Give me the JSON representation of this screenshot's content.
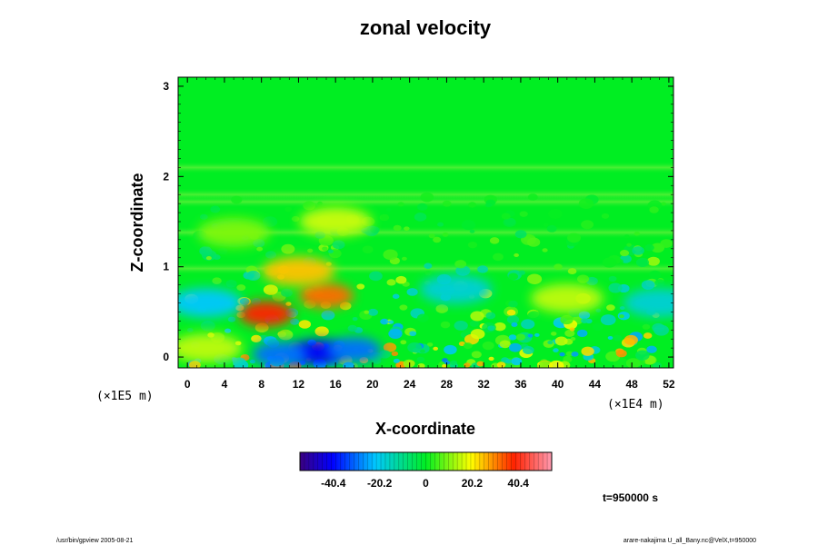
{
  "chart_data": {
    "type": "heatmap",
    "title": "zonal velocity",
    "xlabel": "X-coordinate",
    "ylabel": "Z-coordinate",
    "x_unit": "(×1E4 m)",
    "y_unit": "(×1E5 m)",
    "xlim": [
      -1,
      52.5
    ],
    "ylim": [
      -0.12,
      3.1
    ],
    "x_ticks": [
      "0",
      "4",
      "8",
      "12",
      "16",
      "20",
      "24",
      "28",
      "32",
      "36",
      "40",
      "44",
      "48",
      "52"
    ],
    "y_ticks": [
      "0",
      "1",
      "2",
      "3"
    ],
    "colorbar": {
      "range": [
        -55,
        55
      ],
      "ticks": [
        "-40.4",
        "-20.2",
        "0",
        "20.2",
        "40.4"
      ],
      "tick_values": [
        -40.4,
        -20.2,
        0,
        20.2,
        40.4
      ]
    },
    "colors": {
      "background_field": "#00ee22",
      "negative_extreme": "#1a00a0",
      "positive_extreme": "#ff2200"
    },
    "time_label": "t=950000 s",
    "features": [
      {
        "x": 14,
        "z": 0.05,
        "value": -40
      },
      {
        "x": 10,
        "z": 0.03,
        "value": -30
      },
      {
        "x": 18,
        "z": 0.08,
        "value": -30
      },
      {
        "x": 8.5,
        "z": 0.48,
        "value": 38
      },
      {
        "x": 15,
        "z": 0.68,
        "value": 32
      },
      {
        "x": 12,
        "z": 0.95,
        "value": 25
      },
      {
        "x": 2,
        "z": 0.6,
        "value": -22
      },
      {
        "x": 29,
        "z": 0.75,
        "value": -18
      },
      {
        "x": 51,
        "z": 0.6,
        "value": -18
      },
      {
        "x": 41,
        "z": 0.65,
        "value": 15
      },
      {
        "x": 16,
        "z": 1.5,
        "value": 16
      },
      {
        "x": 5,
        "z": 1.38,
        "value": 10
      },
      {
        "x": 2,
        "z": 0.1,
        "value": 15
      }
    ]
  },
  "footer": {
    "left": "/usr/bin/gpview 2005-08-21",
    "right": "arare-nakajima    U_all_Bany.nc@VelX,t=950000"
  }
}
